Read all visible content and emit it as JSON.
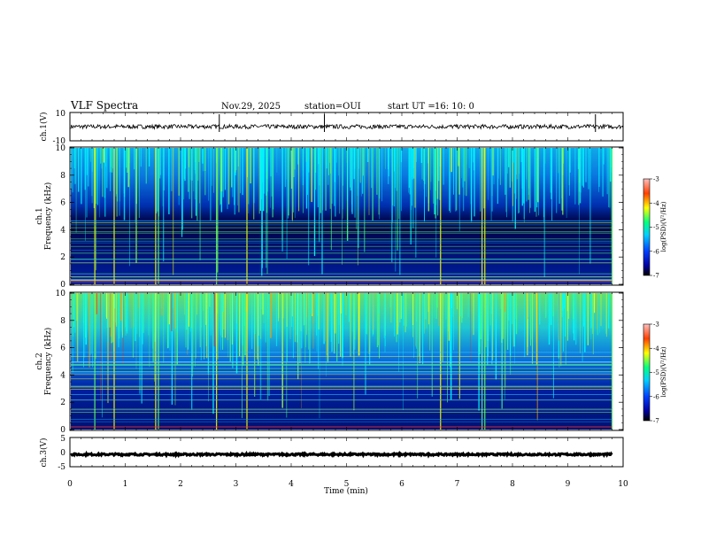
{
  "header": {
    "title": "VLF Spectra",
    "date": "Nov.29, 2025",
    "station": "station=OUI",
    "start_label": "start UT =",
    "start_time": "16: 10: 0"
  },
  "chart_data": [
    {
      "type": "line",
      "name": "ch1-waveform",
      "ylabel": "ch.1(V)",
      "ylim": [
        -10,
        10
      ],
      "yticks": [
        "10",
        "-10"
      ],
      "trace_level": 0,
      "xlim": [
        0,
        10
      ]
    },
    {
      "type": "heatmap",
      "name": "ch1-spectrogram",
      "ylabel": "ch.1\nFrequency (kHz)",
      "ylabel_top": "ch.1",
      "ylabel_bottom": "Frequency (kHz)",
      "ylim": [
        0,
        10
      ],
      "yticks": [
        "0",
        "2",
        "4",
        "6",
        "8",
        "10"
      ],
      "xlim": [
        0,
        9.8
      ],
      "colorbar": {
        "label": "log(PSD)(V²/Hz)",
        "ticks": [
          "-3",
          "-4",
          "-5",
          "-6",
          "-7"
        ],
        "range": [
          -7,
          -3
        ]
      }
    },
    {
      "type": "heatmap",
      "name": "ch2-spectrogram",
      "ylabel_top": "ch.2",
      "ylabel_bottom": "Frequency (kHz)",
      "ylim": [
        0,
        10
      ],
      "yticks": [
        "0",
        "2",
        "4",
        "6",
        "8",
        "10"
      ],
      "xlim": [
        0,
        9.8
      ],
      "colorbar": {
        "label": "log(PSD)(V²/Hz)",
        "ticks": [
          "-3",
          "-4",
          "-5",
          "-6",
          "-7"
        ],
        "range": [
          -7,
          -3
        ]
      }
    },
    {
      "type": "line",
      "name": "ch3-waveform",
      "ylabel": "ch.3(V)",
      "ylim": [
        -5,
        5
      ],
      "yticks": [
        "5",
        "0",
        "-5"
      ],
      "trace_level": -0.8,
      "xlim": [
        0,
        9.8
      ]
    }
  ],
  "xaxis": {
    "label": "Time (min)",
    "ticks": [
      "0",
      "1",
      "2",
      "3",
      "4",
      "5",
      "6",
      "7",
      "8",
      "9",
      "10"
    ],
    "range": [
      0,
      10
    ]
  },
  "colors": {
    "background": "#000080",
    "low": "#0000c8",
    "mid": "#00c8ff",
    "high": "#ffff00",
    "peak": "#ff0000"
  }
}
